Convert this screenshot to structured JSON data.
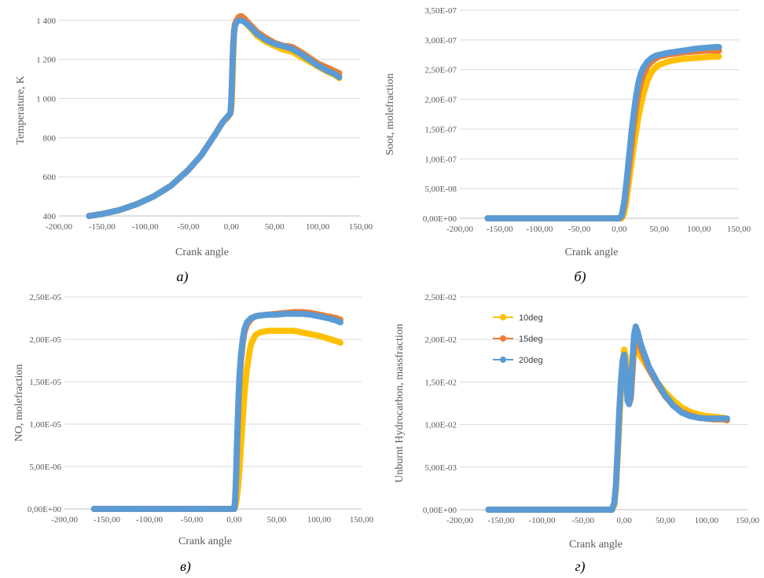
{
  "colors": {
    "s10": "#FFC000",
    "s15": "#ED7D31",
    "s20": "#5B9BD5",
    "grid": "#D9D9D9",
    "axis": "#BFBFBF"
  },
  "chart_data": [
    {
      "type": "scatter",
      "caption": "а)",
      "xlabel": "Crank angle",
      "ylabel": "Temperature,  K",
      "xlim": [
        -200,
        150
      ],
      "ylim": [
        400,
        1480
      ],
      "xticks": [
        -200,
        -150,
        -100,
        -50,
        0,
        50,
        100,
        150
      ],
      "xtick_labels": [
        "-200,00",
        "-150,00",
        "-100,00",
        "-50,00",
        "0,00",
        "50,00",
        "100,00",
        "150,00"
      ],
      "yticks": [
        400,
        600,
        800,
        1000,
        1200,
        1400
      ],
      "ytick_labels": [
        "400",
        "600",
        "800",
        "1 000",
        "1 200",
        "1 400"
      ],
      "grid": "horizontal",
      "legend": "none",
      "series": [
        {
          "name": "10deg",
          "x": [
            -165,
            -150,
            -130,
            -110,
            -90,
            -70,
            -50,
            -35,
            -20,
            -10,
            -5,
            -1,
            0,
            1,
            2,
            3,
            4,
            6,
            8,
            10,
            12,
            15,
            20,
            30,
            40,
            50,
            60,
            70,
            80,
            90,
            100,
            110,
            120,
            125
          ],
          "y": [
            400,
            410,
            430,
            460,
            500,
            555,
            635,
            710,
            810,
            880,
            900,
            925,
            950,
            1050,
            1200,
            1320,
            1370,
            1400,
            1410,
            1410,
            1405,
            1395,
            1370,
            1320,
            1290,
            1270,
            1250,
            1240,
            1215,
            1190,
            1165,
            1140,
            1120,
            1105
          ]
        },
        {
          "name": "15deg",
          "x": [
            -165,
            -150,
            -130,
            -110,
            -90,
            -70,
            -50,
            -35,
            -20,
            -10,
            -5,
            -2,
            -1,
            0,
            1,
            2,
            3,
            4,
            6,
            8,
            10,
            12,
            15,
            20,
            30,
            40,
            50,
            60,
            70,
            80,
            90,
            100,
            110,
            120,
            125
          ],
          "y": [
            400,
            410,
            430,
            460,
            500,
            555,
            635,
            710,
            810,
            880,
            905,
            920,
            930,
            1000,
            1150,
            1280,
            1350,
            1380,
            1400,
            1415,
            1420,
            1420,
            1410,
            1385,
            1340,
            1310,
            1285,
            1270,
            1265,
            1240,
            1210,
            1180,
            1160,
            1140,
            1130
          ]
        },
        {
          "name": "20deg",
          "x": [
            -165,
            -150,
            -130,
            -110,
            -90,
            -70,
            -50,
            -35,
            -20,
            -10,
            -5,
            -2,
            -1,
            0,
            1,
            2,
            3,
            4,
            6,
            8,
            10,
            12,
            15,
            20,
            30,
            40,
            50,
            60,
            70,
            80,
            90,
            100,
            110,
            120,
            125
          ],
          "y": [
            400,
            410,
            430,
            460,
            500,
            555,
            635,
            710,
            810,
            880,
            905,
            920,
            930,
            1010,
            1130,
            1260,
            1330,
            1370,
            1390,
            1398,
            1400,
            1398,
            1392,
            1375,
            1330,
            1300,
            1280,
            1268,
            1255,
            1230,
            1200,
            1170,
            1145,
            1125,
            1110
          ]
        }
      ]
    },
    {
      "type": "scatter",
      "caption": "б)",
      "xlabel": "Crank angle",
      "ylabel": "Soot, molefraction",
      "xlim": [
        -200,
        150
      ],
      "ylim": [
        0,
        3.5e-07
      ],
      "xticks": [
        -200,
        -150,
        -100,
        -50,
        0,
        50,
        100,
        150
      ],
      "xtick_labels": [
        "-200,00",
        "-150,00",
        "-100,00",
        "-50,00",
        "0,00",
        "50,00",
        "100,00",
        "150,00"
      ],
      "yticks": [
        0,
        5e-08,
        1e-07,
        1.5e-07,
        2e-07,
        2.5e-07,
        3e-07,
        3.5e-07
      ],
      "ytick_labels": [
        "0,00E+00",
        "5,00E-08",
        "1,00E-07",
        "1,50E-07",
        "2,00E-07",
        "2,50E-07",
        "3,00E-07",
        "3,50E-07"
      ],
      "grid": "horizontal",
      "legend": "none",
      "series": [
        {
          "name": "10deg",
          "x": [
            -165,
            -140,
            -110,
            -80,
            -50,
            -20,
            -5,
            0,
            3,
            6,
            9,
            12,
            15,
            18,
            21,
            24,
            27,
            30,
            35,
            40,
            45,
            50,
            60,
            70,
            80,
            90,
            100,
            110,
            120,
            125
          ],
          "y": [
            0,
            0,
            0,
            0,
            0,
            0,
            0,
            0,
            0,
            8e-09,
            3e-08,
            6e-08,
            9e-08,
            1.2e-07,
            1.45e-07,
            1.7e-07,
            1.9e-07,
            2.08e-07,
            2.3e-07,
            2.45e-07,
            2.53e-07,
            2.58e-07,
            2.63e-07,
            2.66e-07,
            2.68e-07,
            2.69e-07,
            2.7e-07,
            2.71e-07,
            2.72e-07,
            2.72e-07
          ]
        },
        {
          "name": "15deg",
          "x": [
            -165,
            -140,
            -110,
            -80,
            -50,
            -20,
            -5,
            0,
            3,
            6,
            9,
            12,
            15,
            18,
            21,
            24,
            27,
            30,
            35,
            40,
            45,
            50,
            60,
            70,
            80,
            90,
            100,
            110,
            120,
            125
          ],
          "y": [
            0,
            0,
            0,
            0,
            0,
            0,
            0,
            0,
            3e-09,
            2e-08,
            5e-08,
            8.5e-08,
            1.2e-07,
            1.55e-07,
            1.85e-07,
            2.1e-07,
            2.27e-07,
            2.4e-07,
            2.55e-07,
            2.63e-07,
            2.68e-07,
            2.72e-07,
            2.75e-07,
            2.77e-07,
            2.79e-07,
            2.8e-07,
            2.81e-07,
            2.82e-07,
            2.82e-07,
            2.82e-07
          ]
        },
        {
          "name": "20deg",
          "x": [
            -165,
            -140,
            -110,
            -80,
            -50,
            -20,
            -5,
            0,
            3,
            6,
            9,
            12,
            15,
            18,
            21,
            24,
            27,
            30,
            35,
            40,
            45,
            50,
            60,
            70,
            80,
            90,
            100,
            110,
            120,
            125
          ],
          "y": [
            0,
            0,
            0,
            0,
            0,
            0,
            0,
            0,
            5e-09,
            2.5e-08,
            6e-08,
            1e-07,
            1.4e-07,
            1.75e-07,
            2.05e-07,
            2.28e-07,
            2.43e-07,
            2.53e-07,
            2.63e-07,
            2.69e-07,
            2.73e-07,
            2.75e-07,
            2.78e-07,
            2.8e-07,
            2.82e-07,
            2.84e-07,
            2.86e-07,
            2.87e-07,
            2.88e-07,
            2.88e-07
          ]
        }
      ]
    },
    {
      "type": "scatter",
      "caption": "в)",
      "xlabel": "Crank angle",
      "ylabel": "NO, molefraction",
      "xlim": [
        -200,
        150
      ],
      "ylim": [
        0,
        2.5e-05
      ],
      "xticks": [
        -200,
        -150,
        -100,
        -50,
        0,
        50,
        100,
        150
      ],
      "xtick_labels": [
        "-200,00",
        "-150,00",
        "-100,00",
        "-50,00",
        "0,00",
        "50,00",
        "100,00",
        "150,00"
      ],
      "yticks": [
        0,
        5e-06,
        1e-05,
        1.5e-05,
        2e-05,
        2.5e-05
      ],
      "ytick_labels": [
        "0,00E+00",
        "5,00E-06",
        "1,00E-05",
        "1,50E-05",
        "2,00E-05",
        "2,50E-05"
      ],
      "grid": "horizontal",
      "legend": "none",
      "series": [
        {
          "name": "10deg",
          "x": [
            -165,
            -140,
            -110,
            -80,
            -50,
            -20,
            -5,
            0,
            2,
            4,
            6,
            8,
            10,
            12,
            15,
            18,
            20,
            25,
            30,
            40,
            50,
            60,
            70,
            80,
            90,
            100,
            110,
            120,
            125
          ],
          "y": [
            0,
            0,
            0,
            0,
            0,
            0,
            0,
            0,
            5e-07,
            2e-06,
            4.5e-06,
            7.5e-06,
            1.05e-05,
            1.35e-05,
            1.65e-05,
            1.85e-05,
            1.95e-05,
            2.05e-05,
            2.08e-05,
            2.1e-05,
            2.1e-05,
            2.1e-05,
            2.1e-05,
            2.08e-05,
            2.06e-05,
            2.04e-05,
            2.01e-05,
            1.98e-05,
            1.96e-05
          ]
        },
        {
          "name": "15deg",
          "x": [
            -165,
            -140,
            -110,
            -80,
            -50,
            -20,
            -5,
            0,
            1,
            2,
            3,
            4,
            5,
            6,
            8,
            10,
            12,
            15,
            20,
            25,
            30,
            40,
            50,
            60,
            70,
            80,
            90,
            100,
            110,
            120,
            125
          ],
          "y": [
            0,
            0,
            0,
            0,
            0,
            0,
            0,
            0,
            8e-07,
            3e-06,
            6e-06,
            9e-06,
            1.2e-05,
            1.45e-05,
            1.75e-05,
            1.95e-05,
            2.08e-05,
            2.17e-05,
            2.24e-05,
            2.27e-05,
            2.28e-05,
            2.29e-05,
            2.3e-05,
            2.31e-05,
            2.32e-05,
            2.32e-05,
            2.31e-05,
            2.29e-05,
            2.27e-05,
            2.25e-05,
            2.23e-05
          ]
        },
        {
          "name": "20deg",
          "x": [
            -165,
            -140,
            -110,
            -80,
            -50,
            -20,
            -5,
            0,
            1,
            2,
            3,
            4,
            5,
            6,
            8,
            10,
            12,
            15,
            20,
            25,
            30,
            40,
            50,
            60,
            70,
            80,
            90,
            100,
            110,
            120,
            125
          ],
          "y": [
            0,
            0,
            0,
            0,
            0,
            0,
            0,
            0,
            1e-06,
            3.5e-06,
            7e-06,
            1e-05,
            1.3e-05,
            1.55e-05,
            1.82e-05,
            2e-05,
            2.12e-05,
            2.2e-05,
            2.25e-05,
            2.27e-05,
            2.28e-05,
            2.29e-05,
            2.29e-05,
            2.3e-05,
            2.3e-05,
            2.3e-05,
            2.29e-05,
            2.27e-05,
            2.25e-05,
            2.22e-05,
            2.2e-05
          ]
        }
      ]
    },
    {
      "type": "scatter",
      "caption": "г)",
      "xlabel": "Crank angle",
      "ylabel": "Unburnt Hydrocarbon, massfraction",
      "xlim": [
        -200,
        150
      ],
      "ylim": [
        0,
        0.025
      ],
      "xticks": [
        -200,
        -150,
        -100,
        -50,
        0,
        50,
        100,
        150
      ],
      "xtick_labels": [
        "-200,00",
        "-150,00",
        "-100,00",
        "-50,00",
        "0,00",
        "50,00",
        "100,00",
        "150,00"
      ],
      "yticks": [
        0,
        0.005,
        0.01,
        0.015,
        0.02,
        0.025
      ],
      "ytick_labels": [
        "0,00E+00",
        "5,00E-03",
        "1,00E-02",
        "1,50E-02",
        "2,00E-02",
        "2,50E-02"
      ],
      "grid": "horizontal",
      "legend": "top-left",
      "series": [
        {
          "name": "10deg",
          "x": [
            -165,
            -140,
            -110,
            -80,
            -50,
            -30,
            -20,
            -15,
            -12,
            -10,
            -8,
            -6,
            -4,
            -2,
            0,
            2,
            4,
            6,
            8,
            10,
            12,
            15,
            20,
            30,
            40,
            50,
            60,
            70,
            80,
            90,
            100,
            110,
            120,
            125
          ],
          "y": [
            0,
            0,
            0,
            0,
            0,
            0,
            0,
            0,
            0.0005,
            0.0025,
            0.006,
            0.01,
            0.014,
            0.017,
            0.0188,
            0.018,
            0.015,
            0.0135,
            0.014,
            0.017,
            0.019,
            0.019,
            0.018,
            0.0165,
            0.015,
            0.0138,
            0.0128,
            0.012,
            0.0115,
            0.0112,
            0.011,
            0.0109,
            0.0108,
            0.0107
          ]
        },
        {
          "name": "15deg",
          "x": [
            -165,
            -140,
            -110,
            -80,
            -50,
            -30,
            -20,
            -15,
            -12,
            -10,
            -8,
            -6,
            -4,
            -2,
            0,
            2,
            4,
            6,
            8,
            10,
            12,
            14,
            16,
            20,
            30,
            40,
            50,
            60,
            70,
            80,
            90,
            100,
            110,
            120,
            125
          ],
          "y": [
            0,
            0,
            0,
            0,
            0,
            0,
            0,
            0,
            0.0008,
            0.003,
            0.007,
            0.0115,
            0.015,
            0.0172,
            0.018,
            0.0165,
            0.0135,
            0.0125,
            0.013,
            0.016,
            0.019,
            0.021,
            0.0205,
            0.019,
            0.0165,
            0.0148,
            0.0133,
            0.0122,
            0.0115,
            0.0111,
            0.0108,
            0.0107,
            0.0106,
            0.0106,
            0.0105
          ]
        },
        {
          "name": "20deg",
          "x": [
            -165,
            -140,
            -110,
            -80,
            -50,
            -30,
            -20,
            -15,
            -12,
            -10,
            -8,
            -6,
            -4,
            -2,
            0,
            2,
            4,
            6,
            8,
            10,
            12,
            14,
            16,
            20,
            30,
            40,
            50,
            60,
            70,
            80,
            90,
            100,
            110,
            120,
            125
          ],
          "y": [
            0,
            0,
            0,
            0,
            0,
            0,
            0,
            0,
            0.0008,
            0.003,
            0.007,
            0.0115,
            0.015,
            0.0175,
            0.0182,
            0.016,
            0.0128,
            0.0124,
            0.0135,
            0.0175,
            0.0205,
            0.0215,
            0.021,
            0.0195,
            0.0168,
            0.015,
            0.0134,
            0.0122,
            0.0114,
            0.011,
            0.0108,
            0.0107,
            0.0107,
            0.0107,
            0.0107
          ]
        }
      ]
    }
  ]
}
